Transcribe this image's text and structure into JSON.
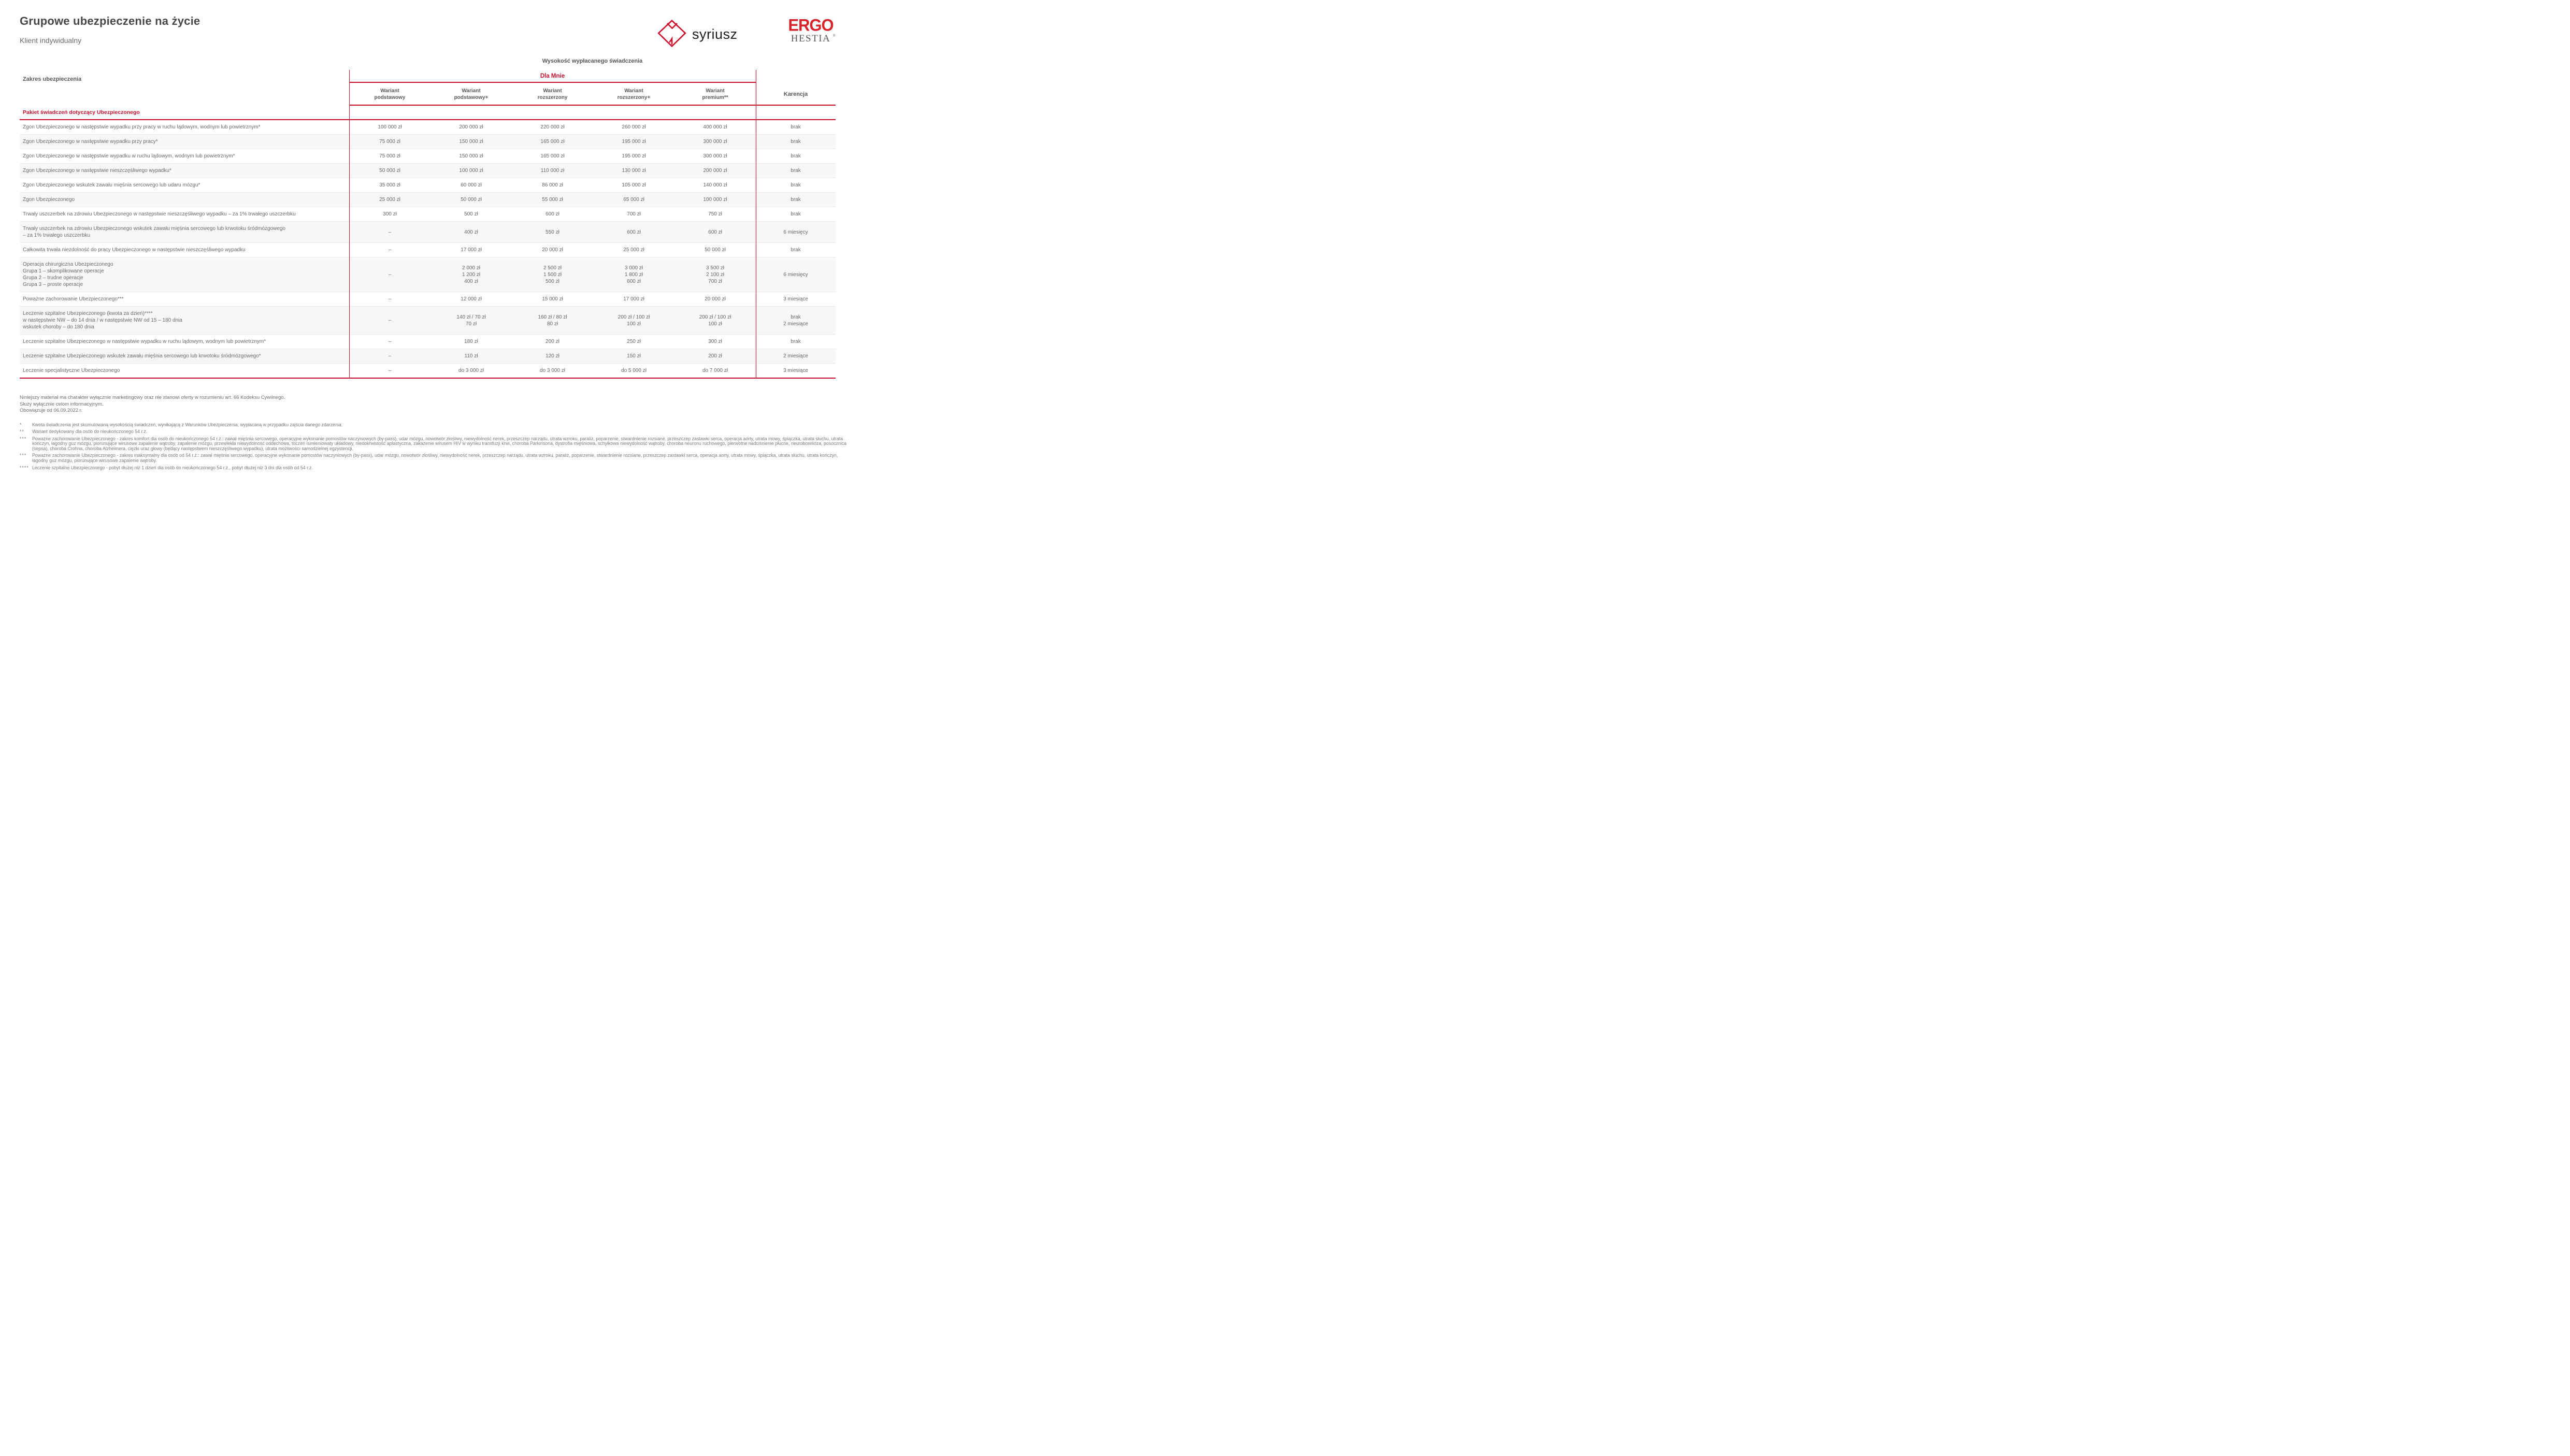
{
  "colors": {
    "accent_red": "#C8102E",
    "ergo_red": "#D8232A",
    "text_gray": "#666666",
    "alt_row_bg": "#f7f7f7"
  },
  "header": {
    "title": "Grupowe ubezpieczenie na życie",
    "subtitle": "Klient indywidualny"
  },
  "logos": {
    "syriusz_text": "syriusz",
    "ergo_top": "ERGO",
    "ergo_bottom": "HESTIA",
    "reg": "®"
  },
  "table": {
    "benefit_header": "Wysokość wypłacanego świadczenia",
    "group_label": "Dla Mnie",
    "scope_label": "Zakres ubezpieczenia",
    "karencja_label": "Karencja",
    "variant_headers": [
      {
        "top": "Wariant",
        "bottom": "podstawowy"
      },
      {
        "top": "Wariant",
        "bottom": "podstawowy+"
      },
      {
        "top": "Wariant",
        "bottom": "rozszerzony"
      },
      {
        "top": "Wariant",
        "bottom": "rozszerzony+"
      },
      {
        "top": "Wariant",
        "bottom": "premium**"
      }
    ],
    "section_header": "Pakiet świadczeń dotyczący Ubezpieczonego",
    "rows": [
      {
        "label": [
          "Zgon Ubezpieczonego w następstwie wypadku przy pracy w ruchu lądowym, wodnym lub powietrznym*"
        ],
        "values": [
          [
            "100 000 zł"
          ],
          [
            "200 000 zł"
          ],
          [
            "220 000 zł"
          ],
          [
            "260 000 zł"
          ],
          [
            "400 000 zł"
          ]
        ],
        "karencja": [
          "brak"
        ]
      },
      {
        "label": [
          "Zgon Ubezpieczonego w następstwie wypadku przy pracy*"
        ],
        "values": [
          [
            "75 000 zł"
          ],
          [
            "150 000 zł"
          ],
          [
            "165 000 zł"
          ],
          [
            "195 000 zł"
          ],
          [
            "300 000 zł"
          ]
        ],
        "karencja": [
          "brak"
        ]
      },
      {
        "label": [
          "Zgon Ubezpieczonego w następstwie wypadku w ruchu lądowym, wodnym lub powietrznym*"
        ],
        "values": [
          [
            "75 000 zł"
          ],
          [
            "150 000 zł"
          ],
          [
            "165 000 zł"
          ],
          [
            "195 000 zł"
          ],
          [
            "300 000 zł"
          ]
        ],
        "karencja": [
          "brak"
        ]
      },
      {
        "label": [
          "Zgon Ubezpieczonego w następstwie nieszczęśliwego wypadku*"
        ],
        "values": [
          [
            "50 000 zł"
          ],
          [
            "100 000 zł"
          ],
          [
            "110 000 zł"
          ],
          [
            "130 000 zł"
          ],
          [
            "200 000 zł"
          ]
        ],
        "karencja": [
          "brak"
        ]
      },
      {
        "label": [
          "Zgon Ubezpieczonego wskutek zawału mięśnia sercowego lub udaru mózgu*"
        ],
        "values": [
          [
            "35 000 zł"
          ],
          [
            "60 000 zł"
          ],
          [
            "86 000 zł"
          ],
          [
            "105 000 zł"
          ],
          [
            "140 000 zł"
          ]
        ],
        "karencja": [
          "brak"
        ]
      },
      {
        "label": [
          "Zgon Ubezpieczonego"
        ],
        "values": [
          [
            "25 000 zł"
          ],
          [
            "50 000 zł"
          ],
          [
            "55 000 zł"
          ],
          [
            "65 000 zł"
          ],
          [
            "100 000 zł"
          ]
        ],
        "karencja": [
          "brak"
        ]
      },
      {
        "label": [
          "Trwały uszczerbek na zdrowiu Ubezpieczonego w następstwie nieszczęśliwego wypadku – za 1% trwałego uszczerbku"
        ],
        "values": [
          [
            "300 zł"
          ],
          [
            "500 zł"
          ],
          [
            "600 zł"
          ],
          [
            "700 zł"
          ],
          [
            "750 zł"
          ]
        ],
        "karencja": [
          "brak"
        ]
      },
      {
        "label": [
          "Trwały uszczerbek na zdrowiu Ubezpieczonego wskutek zawału mięśnia sercowego lub krwotoku śródmózgowego",
          "– za 1% trwałego uszczerbku"
        ],
        "values": [
          [
            "–"
          ],
          [
            "400 zł"
          ],
          [
            "550 zł"
          ],
          [
            "600 zł"
          ],
          [
            "600 zł"
          ]
        ],
        "karencja": [
          "6 miesięcy"
        ]
      },
      {
        "label": [
          "Całkowita trwała niezdolność do pracy Ubezpieczonego w następstwie nieszczęśliwego wypadku"
        ],
        "values": [
          [
            "–"
          ],
          [
            "17 000 zł"
          ],
          [
            "20 000 zł"
          ],
          [
            "25 000 zł"
          ],
          [
            "50 000 zł"
          ]
        ],
        "karencja": [
          "brak"
        ]
      },
      {
        "label": [
          "Operacja chirurgiczna Ubezpieczonego",
          "Grupa 1 – skomplikowane operacje",
          "Grupa 2 – trudne operacje",
          "Grupa 3 – proste operacje"
        ],
        "values": [
          [
            "–"
          ],
          [
            "2 000 zł",
            "1 200 zł",
            "400 zł"
          ],
          [
            "2 500 zł",
            "1 500 zł",
            "500 zł"
          ],
          [
            "3 000 zł",
            "1 800 zł",
            "600 zł"
          ],
          [
            "3 500 zł",
            "2 100 zł",
            "700 zł"
          ]
        ],
        "karencja": [
          "6 miesięcy"
        ]
      },
      {
        "label": [
          "Poważne zachorowanie Ubezpieczonego***"
        ],
        "values": [
          [
            "–"
          ],
          [
            "12 000 zł"
          ],
          [
            "15 000 zł"
          ],
          [
            "17 000 zł"
          ],
          [
            "20 000 zł"
          ]
        ],
        "karencja": [
          "3 miesiące"
        ]
      },
      {
        "label": [
          "Leczenie szpitalne Ubezpieczonego (kwota za dzień)****",
          "w następstwie NW – do 14 dnia / w następstwie NW od 15 – 180 dnia",
          "wskutek choroby – do 180 dnia"
        ],
        "values": [
          [
            "–"
          ],
          [
            "140 zł / 70 zł",
            "70 zł"
          ],
          [
            "160 zł / 80 zł",
            "80 zł"
          ],
          [
            "200 zł / 100 zł",
            "100 zł"
          ],
          [
            "200 zł / 100 zł",
            "100 zł"
          ]
        ],
        "karencja": [
          "brak",
          "2 miesiące"
        ]
      },
      {
        "label": [
          "Leczenie szpitalne Ubezpieczonego w następstwie wypadku w ruchu lądowym, wodnym lub powietrznym*"
        ],
        "values": [
          [
            "–"
          ],
          [
            "180 zł"
          ],
          [
            "200 zł"
          ],
          [
            "250 zł"
          ],
          [
            "300 zł"
          ]
        ],
        "karencja": [
          "brak"
        ]
      },
      {
        "label": [
          "Leczenie szpitalne Ubezpieczonego wskutek zawału mięśnia sercowego lub krwotoku śródmózgowego*"
        ],
        "values": [
          [
            "–"
          ],
          [
            "110 zł"
          ],
          [
            "120 zł"
          ],
          [
            "150 zł"
          ],
          [
            "200 zł"
          ]
        ],
        "karencja": [
          "2 miesiące"
        ]
      },
      {
        "label": [
          "Leczenie specjalistyczne Ubezpieczonego"
        ],
        "values": [
          [
            "–"
          ],
          [
            "do 3 000 zł"
          ],
          [
            "do 3 000 zł"
          ],
          [
            "do 5 000 zł"
          ],
          [
            "do 7 000 zł"
          ]
        ],
        "karencja": [
          "3 miesiące"
        ]
      }
    ]
  },
  "footer": {
    "notes": [
      "Niniejszy materiał ma charakter wyłącznie marketingowy oraz nie stanowi oferty w rozumieniu art. 66 Kodeksu Cywilnego.",
      "Służy wyłącznie celom informacyjnym.",
      "Obowiązuje od 06.09.2022 r."
    ],
    "footnotes": [
      {
        "marker": "*",
        "text": "Kwota świadczenia jest skumulowaną wysokością świadczeń, wynikającą z Warunków Ubezpieczenia, wypłacaną w przypadku zajścia danego zdarzenia."
      },
      {
        "marker": "**",
        "text": "Wariant dedykowany dla osób do nieukończonego 54 r.ż."
      },
      {
        "marker": "***",
        "text": "Poważne zachorowanie Ubezpieczonego - zakres komfort dla osób do nieukończonego 54 r.ż.: zawał mięśnia sercowego, operacyjne wykonanie pomostów naczyniowych (by-pass), udar mózgu, nowotwór złośliwy, niewydolność nerek, przeszczep narządu, utrata wzroku, paraliż, poparzenie, stwardnienie rozsiane, przeszczep zastawki serca, operacja aorty, utrata mowy, śpiączka, utrata słuchu, utrata kończyn, łagodny guz mózgu, piorunujące wirusowe zapalenie wątroby, zapalenie mózgu, przewlekła niewydolność oddechowa, toczeń rumieniowaty układowy, niedokrwistość aplastyczna, zakażenie wirusem HIV w wyniku transfuzji krwi, choroba Parkinsona, dystrofia mięśniowa, schyłkowa niewydolność wątroby, choroba neuronu ruchowego, pierwotne nadciśnienie płucne, neuroborelioza, posocznica (sepsa), choroba Crohna, choroba Alzheimera, ciężki uraz głowy (będący następstwem nieszczęśliwego wypadku), utrata możliwości samodzielnej egzystencji."
      },
      {
        "marker": "***",
        "text": "Poważne zachorowanie Ubezpieczonego - zakres maksymalny dla osób od 54 r.ż.: zawał mięśnia sercowego, operacyjne wykonanie pomostów naczyniowych (by-pass), udar mózgu, nowotwór złośliwy, niewydolność nerek, przeszczep narządu, utrata wzroku, paraliż, poparzenie, stwardnienie rozsiane, przeszczep zastawki serca, operacja aorty, utrata mowy, śpiączka, utrata słuchu, utrata kończyn, łagodny guz mózgu, piorunujące wirusowe zapalenie wątroby."
      },
      {
        "marker": "****",
        "text": "Leczenie szpitalne Ubezpieczonego - pobyt dłużej niż 1 dzień dla osób do nieukończonego 54 r.ż., pobyt dłużej niż 3 dni dla osób od 54 r.ż."
      }
    ]
  }
}
